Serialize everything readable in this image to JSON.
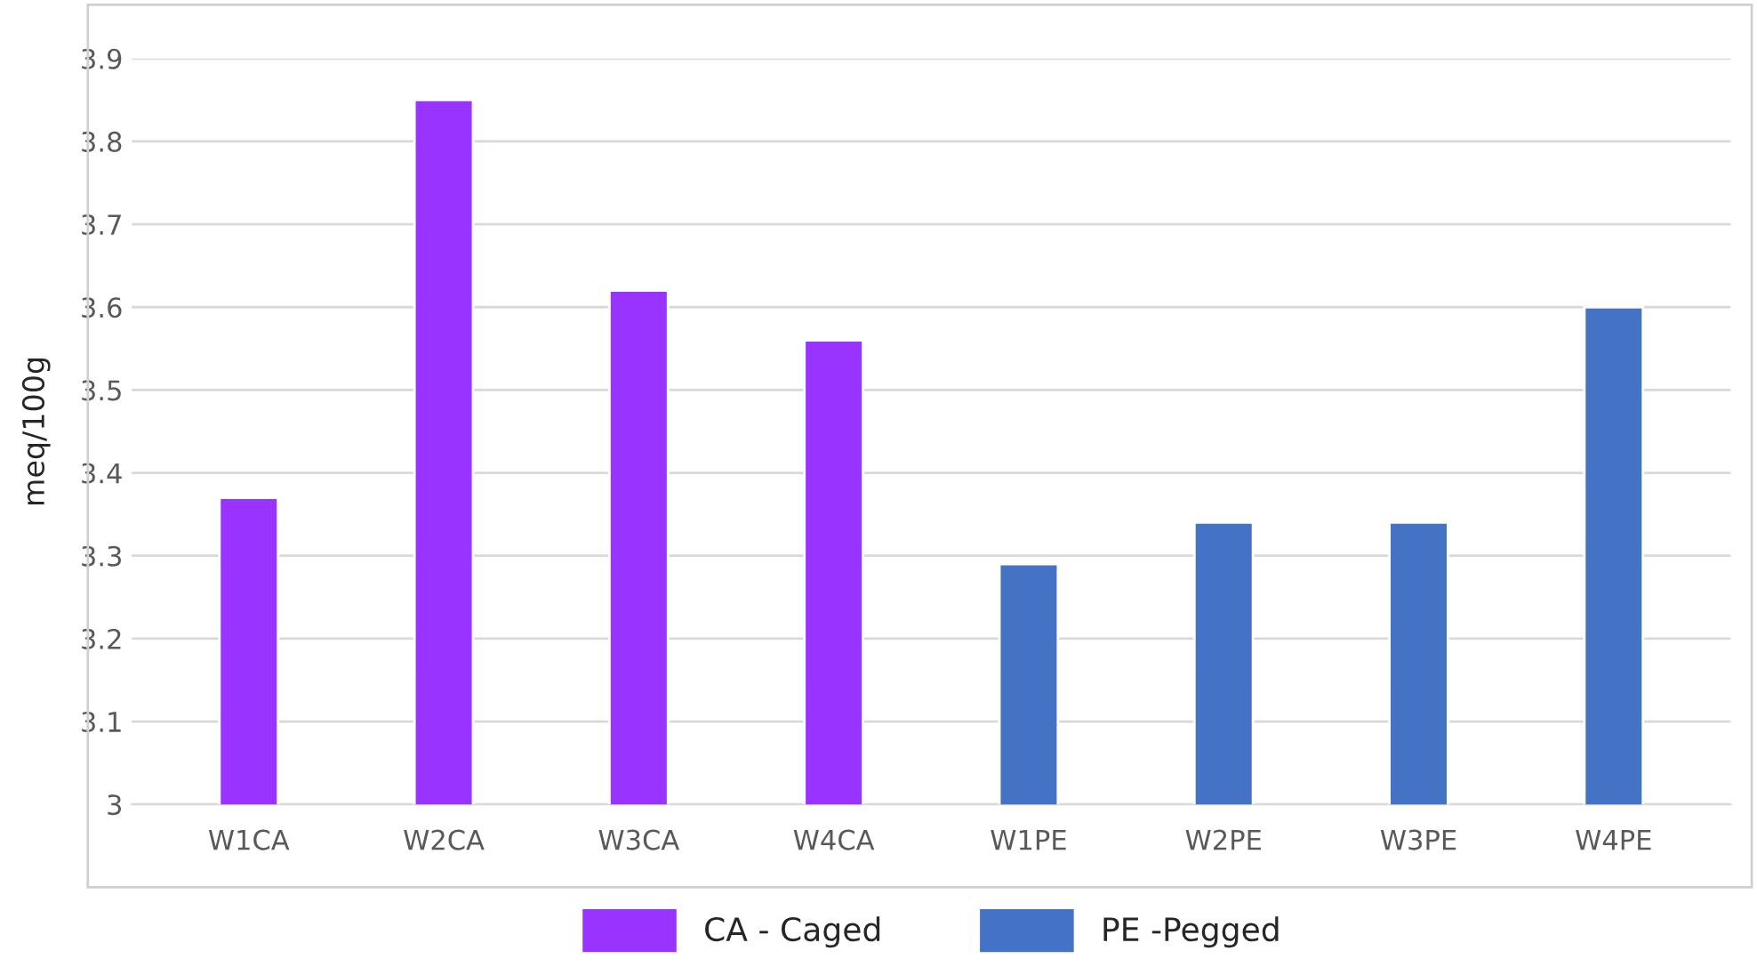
{
  "chart_data": {
    "type": "bar",
    "ylabel": "meq/100g",
    "categories": [
      "W1CA",
      "W2CA",
      "W3CA",
      "W4CA",
      "W1PE",
      "W2PE",
      "W3PE",
      "W4PE"
    ],
    "series": [
      {
        "name": "CA - Caged",
        "color": "#9933ff",
        "values": [
          3.37,
          3.85,
          3.62,
          3.56,
          null,
          null,
          null,
          null
        ]
      },
      {
        "name": "PE -Pegged",
        "color": "#4472c4",
        "values": [
          null,
          null,
          null,
          null,
          3.29,
          3.34,
          3.34,
          3.6
        ]
      }
    ],
    "ylim": [
      3,
      3.9
    ],
    "yticks": [
      3,
      3.1,
      3.2,
      3.3,
      3.4,
      3.5,
      3.6,
      3.7,
      3.8,
      3.9
    ],
    "grid": "y",
    "legend": "bottom"
  }
}
